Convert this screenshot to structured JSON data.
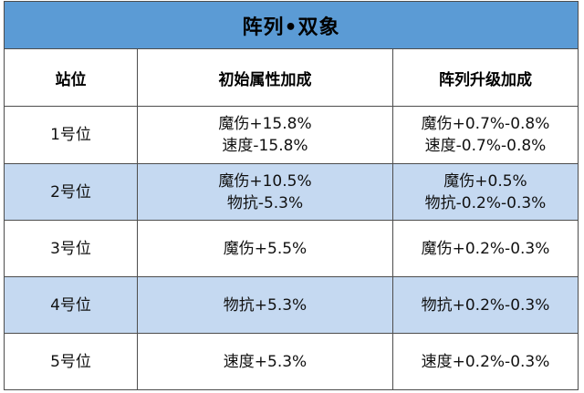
{
  "table": {
    "title": "阵列•双象",
    "headers": [
      "站位",
      "初始属性加成",
      "阵列升级加成"
    ],
    "rows": [
      {
        "position": "1号位",
        "initial": [
          "魔伤+15.8%",
          "速度-15.8%"
        ],
        "upgrade": [
          "魔伤+0.7%-0.8%",
          "速度-0.7%-0.8%"
        ]
      },
      {
        "position": "2号位",
        "initial": [
          "魔伤+10.5%",
          "物抗-5.3%"
        ],
        "upgrade": [
          "魔伤+0.5%",
          "物抗-0.2%-0.3%"
        ]
      },
      {
        "position": "3号位",
        "initial": [
          "魔伤+5.5%"
        ],
        "upgrade": [
          "魔伤+0.2%-0.3%"
        ]
      },
      {
        "position": "4号位",
        "initial": [
          "物抗+5.3%"
        ],
        "upgrade": [
          "物抗+0.2%-0.3%"
        ]
      },
      {
        "position": "5号位",
        "initial": [
          "速度+5.3%"
        ],
        "upgrade": [
          "速度+0.2%-0.3%"
        ]
      }
    ]
  },
  "colors": {
    "title_bg": "#5b9bd5",
    "alt_row_bg": "#c5d9f1",
    "border": "#4d4d4d"
  }
}
